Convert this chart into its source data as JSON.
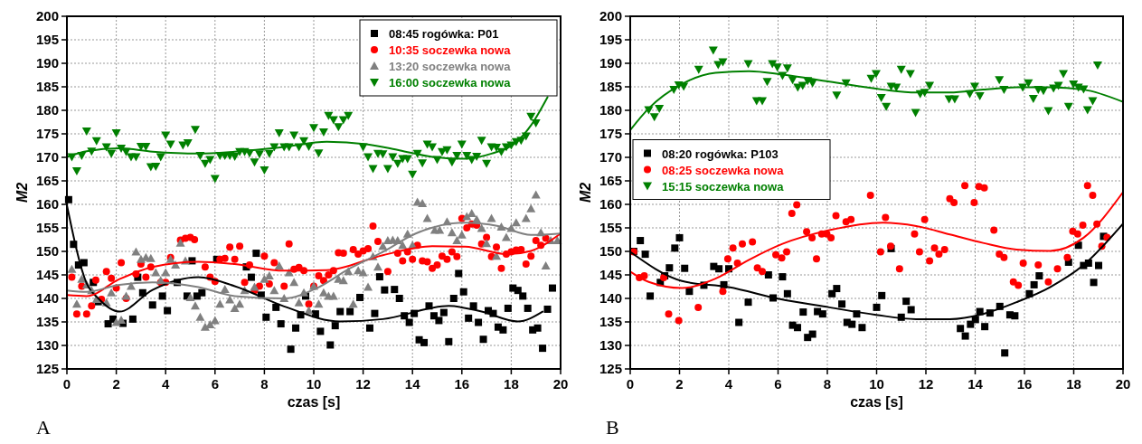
{
  "chart_data": [
    {
      "type": "scatter",
      "xlabel": "czas [s]",
      "ylabel": "M2",
      "xlim": [
        0,
        20
      ],
      "ylim": [
        125,
        200
      ],
      "xticks": [
        0,
        2,
        4,
        6,
        8,
        10,
        12,
        14,
        16,
        18,
        20
      ],
      "yticks": [
        125,
        130,
        135,
        140,
        145,
        150,
        155,
        160,
        165,
        170,
        175,
        180,
        185,
        190,
        195,
        200
      ],
      "grid": true,
      "legend": "top right",
      "annotations": [
        "A"
      ],
      "series": [
        {
          "type": "scatter",
          "name": "08:45 rogówka: P01",
          "color": "#000000",
          "marker": "square",
          "x": [
            0.07,
            0.27,
            0.47,
            0.69,
            1.07,
            1.27,
            1.67,
            1.87,
            2.27,
            2.67,
            2.87,
            3.07,
            3.47,
            3.87,
            4.07,
            4.47,
            4.87,
            5.07,
            5.27,
            5.47,
            6.07,
            7.27,
            7.47,
            7.67,
            7.87,
            8.07,
            8.47,
            8.67,
            9.07,
            9.27,
            9.47,
            9.67,
            10.07,
            10.27,
            10.67,
            10.87,
            11.07,
            11.47,
            11.87,
            12.27,
            12.47,
            12.67,
            12.87,
            13.27,
            13.47,
            13.67,
            13.87,
            14.07,
            14.27,
            14.47,
            14.67,
            14.87,
            15.07,
            15.27,
            15.47,
            15.67,
            15.87,
            16.07,
            16.27,
            16.47,
            16.67,
            16.87,
            17.07,
            17.27,
            17.47,
            17.67,
            17.87,
            18.07,
            18.27,
            18.47,
            18.67,
            18.87,
            19.07,
            19.27,
            19.47,
            19.67
          ],
          "values": [
            161.0,
            151.5,
            147.1,
            147.6,
            143.4,
            139.3,
            134.6,
            135.6,
            134.7,
            135.6,
            144.5,
            141.2,
            138.6,
            140.5,
            137.4,
            143.4,
            140.5,
            148.0,
            140.5,
            141.2,
            148.3,
            146.7,
            144.5,
            149.6,
            140.7,
            136.0,
            138.1,
            134.6,
            129.2,
            133.7,
            136.5,
            140.5,
            136.7,
            133.0,
            130.1,
            134.2,
            137.2,
            137.2,
            140.2,
            133.7,
            136.8,
            144.6,
            141.8,
            141.9,
            140.0,
            136.3,
            134.9,
            136.8,
            131.2,
            130.6,
            138.4,
            136.3,
            135.3,
            137.0,
            130.8,
            140.0,
            145.3,
            141.4,
            135.8,
            138.4,
            134.9,
            131.3,
            137.4,
            136.8,
            133.9,
            133.3,
            137.9,
            142.2,
            141.7,
            140.5,
            137.9,
            133.3,
            133.7,
            129.4,
            137.7,
            142.2
          ]
        },
        {
          "type": "scatter",
          "name": "10:35 soczewka nowa",
          "color": "#ff0000",
          "marker": "circle",
          "x": [
            0.2,
            0.4,
            0.6,
            0.8,
            1.0,
            1.17,
            1.4,
            1.6,
            1.8,
            2.0,
            2.2,
            2.4,
            2.8,
            3.0,
            3.2,
            3.4,
            3.8,
            4.0,
            4.2,
            4.6,
            4.8,
            5.0,
            5.17,
            5.6,
            5.8,
            6.0,
            6.2,
            6.4,
            6.6,
            6.8,
            7.0,
            7.2,
            7.4,
            7.6,
            7.8,
            8.0,
            8.2,
            8.4,
            8.8,
            9.0,
            9.2,
            9.4,
            9.6,
            9.8,
            10.0,
            10.2,
            10.4,
            10.6,
            10.8,
            11.0,
            11.2,
            11.6,
            11.8,
            12.0,
            12.2,
            12.4,
            12.6,
            13.0,
            13.4,
            13.6,
            13.8,
            14.0,
            14.2,
            14.4,
            14.6,
            14.8,
            15.0,
            15.2,
            15.4,
            15.6,
            15.8,
            16.0,
            16.2,
            16.4,
            16.6,
            16.8,
            17.0,
            17.2,
            17.4,
            17.6,
            17.8,
            18.0,
            18.2,
            18.4,
            18.6,
            18.8,
            19.0,
            19.2,
            19.4
          ],
          "values": [
            144.5,
            136.7,
            142.6,
            136.7,
            138.4,
            143.9,
            139.8,
            145.7,
            144.3,
            142.2,
            147.6,
            140.0,
            145.2,
            147.3,
            144.5,
            146.7,
            143.4,
            143.4,
            148.7,
            152.4,
            152.8,
            153.0,
            152.5,
            146.7,
            144.5,
            143.6,
            148.3,
            148.5,
            150.9,
            148.3,
            151.1,
            143.4,
            147.1,
            141.7,
            142.6,
            149.0,
            143.1,
            147.6,
            142.6,
            151.6,
            146.2,
            146.6,
            145.9,
            138.8,
            142.6,
            144.8,
            143.8,
            145.0,
            145.9,
            149.7,
            149.6,
            150.4,
            149.4,
            150.1,
            150.6,
            155.4,
            152.1,
            145.7,
            149.6,
            148.0,
            149.9,
            148.3,
            151.3,
            148.0,
            147.8,
            146.4,
            147.1,
            149.0,
            148.3,
            149.9,
            148.9,
            157.0,
            155.0,
            155.8,
            155.6,
            151.6,
            153.0,
            148.9,
            150.9,
            146.4,
            149.4,
            149.9,
            150.3,
            150.4,
            147.3,
            149.0,
            152.3,
            151.3,
            152.8
          ]
        },
        {
          "type": "scatter",
          "name": "13:20 soczewka nowa",
          "color": "#808080",
          "marker": "triangle",
          "x": [
            0.2,
            0.4,
            0.6,
            0.8,
            1.0,
            1.2,
            1.6,
            1.8,
            2.0,
            2.2,
            2.4,
            2.6,
            2.8,
            3.0,
            3.2,
            3.4,
            3.6,
            3.8,
            4.0,
            4.2,
            4.4,
            4.6,
            4.8,
            5.0,
            5.2,
            5.4,
            5.6,
            5.8,
            6.0,
            6.2,
            6.4,
            6.6,
            6.8,
            7.0,
            7.2,
            7.6,
            8.0,
            8.2,
            8.4,
            8.6,
            8.8,
            9.0,
            9.2,
            9.4,
            9.6,
            9.8,
            10.0,
            10.2,
            10.4,
            10.6,
            10.8,
            11.0,
            11.2,
            11.4,
            11.6,
            11.8,
            12.0,
            12.2,
            12.4,
            12.6,
            12.8,
            13.0,
            13.2,
            13.4,
            13.6,
            13.8,
            14.0,
            14.2,
            14.4,
            14.6,
            14.9,
            15.1,
            15.4,
            15.6,
            15.8,
            16.0,
            16.2,
            16.4,
            16.6,
            16.8,
            17.0,
            17.2,
            17.4,
            17.6,
            17.8,
            18.0,
            18.2,
            18.6,
            18.8,
            19.0,
            19.2,
            19.4,
            19.6,
            19.87
          ],
          "values": [
            146.2,
            138.8,
            144.1,
            142.9,
            141.7,
            139.8,
            139.1,
            141.2,
            134.9,
            135.4,
            140.5,
            142.6,
            149.9,
            148.3,
            148.7,
            148.5,
            145.5,
            143.8,
            145.5,
            148.3,
            147.1,
            151.8,
            148.0,
            140.2,
            138.4,
            136.0,
            133.9,
            134.4,
            135.3,
            138.8,
            141.9,
            139.7,
            137.9,
            138.8,
            141.7,
            142.4,
            144.1,
            144.8,
            141.7,
            146.9,
            140.0,
            145.5,
            143.4,
            139.1,
            141.2,
            137.4,
            142.6,
            138.8,
            141.2,
            140.5,
            140.5,
            144.1,
            143.8,
            145.7,
            138.8,
            145.9,
            145.5,
            142.4,
            148.9,
            146.7,
            151.1,
            152.3,
            152.4,
            152.3,
            151.3,
            153.7,
            151.3,
            160.5,
            160.2,
            157.0,
            154.5,
            154.5,
            156.3,
            154.0,
            152.3,
            153.5,
            157.4,
            158.1,
            156.8,
            154.9,
            151.7,
            157.0,
            149.0,
            155.2,
            153.0,
            154.9,
            156.1,
            157.0,
            159.1,
            162.0,
            154.0,
            146.9,
            152.3,
            152.3
          ]
        },
        {
          "type": "scatter",
          "name": "16:00 soczewka nowa",
          "color": "#008000",
          "marker": "triangle-down",
          "x": [
            0.2,
            0.4,
            0.6,
            0.8,
            1.0,
            1.2,
            1.6,
            1.8,
            2.0,
            2.2,
            2.4,
            2.6,
            2.8,
            3.0,
            3.2,
            3.4,
            3.6,
            3.8,
            4.0,
            4.2,
            4.7,
            4.9,
            5.2,
            5.4,
            5.6,
            5.8,
            6.0,
            6.2,
            6.4,
            6.6,
            6.8,
            7.0,
            7.2,
            7.4,
            7.6,
            7.8,
            8.0,
            8.2,
            8.4,
            8.6,
            8.8,
            9.0,
            9.2,
            9.4,
            9.6,
            9.8,
            10.0,
            10.2,
            10.4,
            10.6,
            10.8,
            11.0,
            11.2,
            11.4,
            12.0,
            12.2,
            12.4,
            12.6,
            12.8,
            13.0,
            13.2,
            13.4,
            13.6,
            13.8,
            14.0,
            14.2,
            14.4,
            14.6,
            14.8,
            15.0,
            15.2,
            15.4,
            15.6,
            15.8,
            16.0,
            16.2,
            16.4,
            16.6,
            16.8,
            17.0,
            17.2,
            17.4,
            17.6,
            17.8,
            18.0,
            18.2,
            18.4,
            18.6,
            18.8,
            19.0
          ],
          "values": [
            170.1,
            167.1,
            170.4,
            175.6,
            171.3,
            173.5,
            172.2,
            170.8,
            175.2,
            171.9,
            171.2,
            170.1,
            170.1,
            172.3,
            172.3,
            168.0,
            168.1,
            170.1,
            174.7,
            172.8,
            172.6,
            173.1,
            175.9,
            170.4,
            168.7,
            169.5,
            165.5,
            170.4,
            170.4,
            170.4,
            170.2,
            171.2,
            171.2,
            170.9,
            169.0,
            170.7,
            167.3,
            170.8,
            172.2,
            175.2,
            172.2,
            172.2,
            174.7,
            172.2,
            173.5,
            172.3,
            176.3,
            170.9,
            175.4,
            178.9,
            178.0,
            176.5,
            178.0,
            178.9,
            172.2,
            170.1,
            167.6,
            170.8,
            170.7,
            167.6,
            170.1,
            168.7,
            169.7,
            169.7,
            166.4,
            170.8,
            168.8,
            172.8,
            172.2,
            169.5,
            171.2,
            171.6,
            169.0,
            170.4,
            172.8,
            170.4,
            169.5,
            170.2,
            173.6,
            168.7,
            172.2,
            172.1,
            171.2,
            172.2,
            172.6,
            173.3,
            173.6,
            174.5,
            178.7,
            177.3
          ]
        },
        {
          "type": "line",
          "color": "#000000",
          "x": [
            0,
            0.8,
            1.27,
            2.13,
            3.47,
            5.33,
            6.8,
            8.8,
            11.07,
            12.8,
            15.47,
            16.8,
            18.27,
            19.27
          ],
          "values": [
            159.8,
            143.2,
            140.0,
            137.2,
            141.8,
            144.5,
            142.6,
            138.3,
            135.1,
            135.6,
            138.4,
            137.2,
            135.1,
            137.2
          ]
        },
        {
          "type": "line",
          "color": "#ff0000",
          "x": [
            0,
            0.8,
            2.13,
            3.47,
            5.33,
            6.8,
            8.8,
            10.53,
            12.8,
            14.8,
            16.13,
            17.87,
            18.8,
            20
          ],
          "values": [
            140.7,
            140.5,
            144.1,
            146.7,
            147.8,
            147.3,
            145.9,
            146.0,
            149.2,
            151.1,
            151.0,
            149.4,
            150.1,
            153.8
          ]
        },
        {
          "type": "line",
          "color": "#808080",
          "x": [
            0,
            0.8,
            2.13,
            3.47,
            5.33,
            6.8,
            8.8,
            10.13,
            11.47,
            12.8,
            14.13,
            16.13,
            17.47,
            18.8,
            20
          ],
          "values": [
            141.7,
            141.4,
            142.9,
            143.4,
            142.4,
            140.5,
            140.0,
            142.2,
            146.4,
            149.9,
            153.8,
            156.1,
            155.4,
            153.5,
            153.8
          ]
        },
        {
          "type": "line",
          "color": "#008000",
          "x": [
            0,
            0.8,
            2.13,
            3.47,
            5.33,
            6.8,
            8.8,
            10.53,
            12.13,
            13.47,
            14.8,
            16.13,
            17.2,
            18.13,
            18.8,
            19.47
          ],
          "values": [
            170.1,
            171.3,
            171.9,
            171.2,
            170.8,
            171.2,
            172.2,
            173.3,
            172.8,
            171.5,
            170.1,
            169.7,
            170.8,
            172.9,
            176.8,
            182.8
          ]
        }
      ]
    },
    {
      "type": "scatter",
      "xlabel": "czas [s]",
      "ylabel": "M2",
      "xlim": [
        0,
        20
      ],
      "ylim": [
        125,
        200
      ],
      "xticks": [
        0,
        2,
        4,
        6,
        8,
        10,
        12,
        14,
        16,
        18,
        20
      ],
      "yticks": [
        125,
        130,
        135,
        140,
        145,
        150,
        155,
        160,
        165,
        170,
        175,
        180,
        185,
        190,
        195,
        200
      ],
      "grid": true,
      "legend": "left",
      "annotations": [
        "B"
      ],
      "series": [
        {
          "type": "scatter",
          "name": "08:20 rogówka: P103",
          "color": "#000000",
          "marker": "square",
          "x": [
            0.14,
            0.41,
            0.61,
            0.81,
            1.22,
            1.4,
            1.59,
            1.81,
            2.0,
            2.21,
            2.4,
            2.99,
            3.39,
            3.6,
            3.8,
            4.0,
            4.41,
            4.79,
            5.61,
            5.8,
            6.18,
            6.38,
            6.59,
            6.79,
            7.02,
            7.2,
            7.4,
            7.6,
            7.81,
            8.19,
            8.38,
            8.59,
            8.8,
            9.0,
            9.19,
            9.41,
            10.0,
            10.21,
            10.59,
            11.0,
            11.2,
            11.4,
            13.4,
            13.6,
            13.81,
            14.01,
            14.19,
            14.39,
            14.6,
            15.0,
            15.2,
            15.41,
            15.61,
            16.2,
            16.39,
            16.6,
            17.79,
            18.19,
            18.4,
            18.6,
            18.81,
            19.01,
            19.21
          ],
          "values": [
            150.0,
            152.3,
            149.4,
            140.5,
            143.4,
            144.8,
            146.5,
            150.7,
            152.9,
            146.4,
            141.5,
            142.8,
            146.8,
            146.3,
            142.9,
            146.3,
            134.9,
            139.2,
            145.0,
            140.1,
            144.6,
            141.0,
            134.3,
            133.8,
            137.1,
            131.7,
            132.4,
            137.2,
            136.7,
            141.0,
            142.1,
            138.8,
            134.9,
            134.5,
            136.7,
            133.8,
            138.1,
            140.6,
            150.6,
            136.0,
            139.4,
            137.6,
            133.6,
            132.0,
            134.5,
            135.5,
            137.2,
            134.0,
            136.9,
            138.3,
            128.4,
            136.5,
            136.3,
            141.0,
            142.9,
            144.8,
            147.7,
            151.3,
            147.0,
            147.5,
            143.4,
            147.0,
            153.2
          ]
        },
        {
          "type": "scatter",
          "name": "08:25 soczewka nowa",
          "color": "#ff0000",
          "marker": "circle",
          "x": [
            0.14,
            0.37,
            0.57,
            1.36,
            1.56,
            1.97,
            2.76,
            3.76,
            3.96,
            4.17,
            4.35,
            4.55,
            4.96,
            5.16,
            5.36,
            5.91,
            6.15,
            6.35,
            6.56,
            6.76,
            7.16,
            7.38,
            7.56,
            7.77,
            7.98,
            8.15,
            8.35,
            8.76,
            8.96,
            9.75,
            10.16,
            10.36,
            10.57,
            10.93,
            11.54,
            11.74,
            11.95,
            12.15,
            12.35,
            12.53,
            12.76,
            12.97,
            13.14,
            13.58,
            13.96,
            14.15,
            14.37,
            14.76,
            14.98,
            15.17,
            15.55,
            15.75,
            15.95,
            16.56,
            16.97,
            17.34,
            17.74,
            17.96,
            18.16,
            18.37,
            18.56,
            18.77,
            18.94,
            19.14,
            19.35
          ],
          "values": [
            149.9,
            144.4,
            144.8,
            144.4,
            136.7,
            135.3,
            138.1,
            141.5,
            148.4,
            150.7,
            147.5,
            151.6,
            152.0,
            146.5,
            145.7,
            149.3,
            148.6,
            149.9,
            158.1,
            159.9,
            154.2,
            152.9,
            148.4,
            153.7,
            153.7,
            152.9,
            157.6,
            156.3,
            156.8,
            161.9,
            149.9,
            157.2,
            151.1,
            146.3,
            153.7,
            149.9,
            156.8,
            148.0,
            150.7,
            149.4,
            150.4,
            161.2,
            160.4,
            164.0,
            160.4,
            163.8,
            163.5,
            154.5,
            149.4,
            148.7,
            143.5,
            142.8,
            147.5,
            147.1,
            143.5,
            146.3,
            148.7,
            154.3,
            153.7,
            155.6,
            164.0,
            161.9,
            155.8,
            151.1,
            153.0
          ]
        },
        {
          "type": "scatter",
          "name": "15:15 soczewka nowa",
          "color": "#008000",
          "marker": "triangle-down",
          "x": [
            0.75,
            0.98,
            1.18,
            1.77,
            1.97,
            2.17,
            2.78,
            3.37,
            3.57,
            3.76,
            4.79,
            5.13,
            5.36,
            5.56,
            5.77,
            5.97,
            6.18,
            6.38,
            6.59,
            6.8,
            7.0,
            7.2,
            7.4,
            8.38,
            8.76,
            9.78,
            9.98,
            10.19,
            10.39,
            10.59,
            10.8,
            11.0,
            11.37,
            11.58,
            11.77,
            11.95,
            12.15,
            12.94,
            13.17,
            13.78,
            13.98,
            14.19,
            14.98,
            15.17,
            15.93,
            16.16,
            16.36,
            16.56,
            16.77,
            16.97,
            17.18,
            17.38,
            17.58,
            17.79,
            17.99,
            18.19,
            18.4,
            18.56,
            18.77,
            18.97
          ],
          "values": [
            180.1,
            178.6,
            180.4,
            184.4,
            185.4,
            185.1,
            188.7,
            192.8,
            189.7,
            190.3,
            189.9,
            182.0,
            182.0,
            186.1,
            189.9,
            189.2,
            187.4,
            189.0,
            186.5,
            184.9,
            185.3,
            186.3,
            185.8,
            183.2,
            185.8,
            186.8,
            187.8,
            182.7,
            180.8,
            185.1,
            184.9,
            188.7,
            187.8,
            179.5,
            183.5,
            183.8,
            185.3,
            182.4,
            182.4,
            183.5,
            185.1,
            183.1,
            186.5,
            184.4,
            184.9,
            185.8,
            182.5,
            184.4,
            184.2,
            179.9,
            184.7,
            185.3,
            187.8,
            180.8,
            185.6,
            184.9,
            184.5,
            180.1,
            182.0,
            189.6
          ]
        },
        {
          "type": "line",
          "color": "#000000",
          "x": [
            0,
            2.1,
            4.0,
            6.04,
            8.08,
            9.98,
            11.6,
            12.97,
            14.32,
            15.68,
            17.04,
            18.4,
            20
          ],
          "values": [
            149.9,
            143.7,
            142.4,
            139.9,
            138.1,
            136.5,
            135.6,
            135.6,
            136.7,
            139.2,
            142.4,
            147.1,
            155.9
          ]
        },
        {
          "type": "line",
          "color": "#ff0000",
          "x": [
            0,
            0.75,
            2.1,
            3.46,
            4.82,
            6.18,
            8.08,
            10.25,
            11.61,
            12.97,
            14.32,
            15.68,
            17.04,
            18.4,
            20
          ],
          "values": [
            145.7,
            143.5,
            142.2,
            144.2,
            148.2,
            151.6,
            154.5,
            156.1,
            155.4,
            153.6,
            151.8,
            150.4,
            150.1,
            152.9,
            162.6
          ]
        },
        {
          "type": "line",
          "color": "#008000",
          "x": [
            0,
            0.75,
            2.1,
            3.46,
            4.82,
            6.18,
            8.08,
            10.25,
            11.61,
            12.97,
            14.32,
            15.68,
            17.04,
            18.4,
            20
          ],
          "values": [
            175.8,
            180.4,
            185.6,
            188.0,
            188.3,
            187.6,
            186.1,
            184.4,
            183.8,
            183.8,
            184.4,
            184.9,
            184.9,
            184.4,
            181.8
          ]
        }
      ]
    }
  ]
}
